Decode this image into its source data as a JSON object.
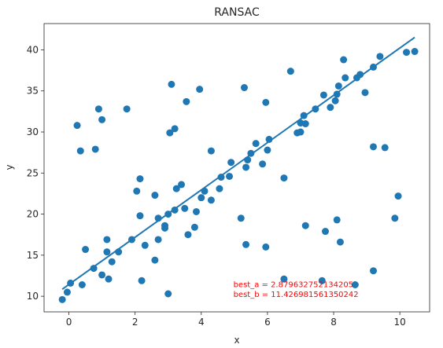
{
  "chart_data": {
    "type": "scatter",
    "title": "RANSAC",
    "xlabel": "x",
    "ylabel": "y",
    "xlim": [
      -0.75,
      10.9
    ],
    "ylim": [
      8.1,
      43.2
    ],
    "xticks": [
      0,
      2,
      4,
      6,
      8,
      10
    ],
    "yticks": [
      10,
      15,
      20,
      25,
      30,
      35,
      40
    ],
    "grid": false,
    "color": "#1f77b4",
    "annotation_color": "#ff0000",
    "annotations": [
      {
        "text": "best_a = 2.879632752134205",
        "x": 4.97,
        "y": 11.1
      },
      {
        "text": "best_b = 11.426981561350242",
        "x": 4.97,
        "y": 9.9
      }
    ],
    "fit_line": {
      "a": 2.879632752134205,
      "b": 11.426981561350242,
      "x_range": [
        -0.2,
        10.45
      ]
    },
    "points": [
      [
        -0.2,
        9.6
      ],
      [
        -0.05,
        10.5
      ],
      [
        0.05,
        11.6
      ],
      [
        0.4,
        11.4
      ],
      [
        0.5,
        15.7
      ],
      [
        0.75,
        13.4
      ],
      [
        1.0,
        12.6
      ],
      [
        1.2,
        12.1
      ],
      [
        1.15,
        15.4
      ],
      [
        1.15,
        16.9
      ],
      [
        1.3,
        14.2
      ],
      [
        1.5,
        15.4
      ],
      [
        1.9,
        16.9
      ],
      [
        2.2,
        11.9
      ],
      [
        2.3,
        16.2
      ],
      [
        2.15,
        19.8
      ],
      [
        2.05,
        22.8
      ],
      [
        2.15,
        24.3
      ],
      [
        2.6,
        14.4
      ],
      [
        2.7,
        16.9
      ],
      [
        2.7,
        19.5
      ],
      [
        2.6,
        22.3
      ],
      [
        2.9,
        18.6
      ],
      [
        2.9,
        18.3
      ],
      [
        3.0,
        20.0
      ],
      [
        3.0,
        10.3
      ],
      [
        3.2,
        20.5
      ],
      [
        3.25,
        23.1
      ],
      [
        3.4,
        23.6
      ],
      [
        3.5,
        20.7
      ],
      [
        3.6,
        17.5
      ],
      [
        3.8,
        18.4
      ],
      [
        3.85,
        20.3
      ],
      [
        4.0,
        22.0
      ],
      [
        4.1,
        22.8
      ],
      [
        4.3,
        21.7
      ],
      [
        4.3,
        27.7
      ],
      [
        4.55,
        23.1
      ],
      [
        4.6,
        24.5
      ],
      [
        4.85,
        24.6
      ],
      [
        4.9,
        26.3
      ],
      [
        5.2,
        19.5
      ],
      [
        5.35,
        16.3
      ],
      [
        5.35,
        25.7
      ],
      [
        5.4,
        26.6
      ],
      [
        5.5,
        27.4
      ],
      [
        5.65,
        28.6
      ],
      [
        5.85,
        26.1
      ],
      [
        6.0,
        27.8
      ],
      [
        6.05,
        29.1
      ],
      [
        5.3,
        35.4
      ],
      [
        5.95,
        33.6
      ],
      [
        6.5,
        24.4
      ],
      [
        5.95,
        16.0
      ],
      [
        6.5,
        12.1
      ],
      [
        6.7,
        37.4
      ],
      [
        6.9,
        29.9
      ],
      [
        7.0,
        30.0
      ],
      [
        7.0,
        31.1
      ],
      [
        7.1,
        32.0
      ],
      [
        7.15,
        31.0
      ],
      [
        7.15,
        18.6
      ],
      [
        7.45,
        32.8
      ],
      [
        7.65,
        11.9
      ],
      [
        7.75,
        17.9
      ],
      [
        7.7,
        34.5
      ],
      [
        7.9,
        33.0
      ],
      [
        8.05,
        33.8
      ],
      [
        8.1,
        34.6
      ],
      [
        8.1,
        19.3
      ],
      [
        8.15,
        35.6
      ],
      [
        8.2,
        16.6
      ],
      [
        8.3,
        38.8
      ],
      [
        8.35,
        36.6
      ],
      [
        8.65,
        11.4
      ],
      [
        8.7,
        36.6
      ],
      [
        8.8,
        37.0
      ],
      [
        8.95,
        34.8
      ],
      [
        9.2,
        37.9
      ],
      [
        9.2,
        28.2
      ],
      [
        9.2,
        13.1
      ],
      [
        9.4,
        39.2
      ],
      [
        9.55,
        28.1
      ],
      [
        9.85,
        19.5
      ],
      [
        9.95,
        22.2
      ],
      [
        10.2,
        39.7
      ],
      [
        10.45,
        39.8
      ],
      [
        0.25,
        30.8
      ],
      [
        0.35,
        27.7
      ],
      [
        0.8,
        27.9
      ],
      [
        0.9,
        32.8
      ],
      [
        1.0,
        31.5
      ],
      [
        1.75,
        32.8
      ],
      [
        3.05,
        29.9
      ],
      [
        3.2,
        30.4
      ],
      [
        3.1,
        35.8
      ],
      [
        3.55,
        33.7
      ],
      [
        3.95,
        35.2
      ]
    ]
  }
}
